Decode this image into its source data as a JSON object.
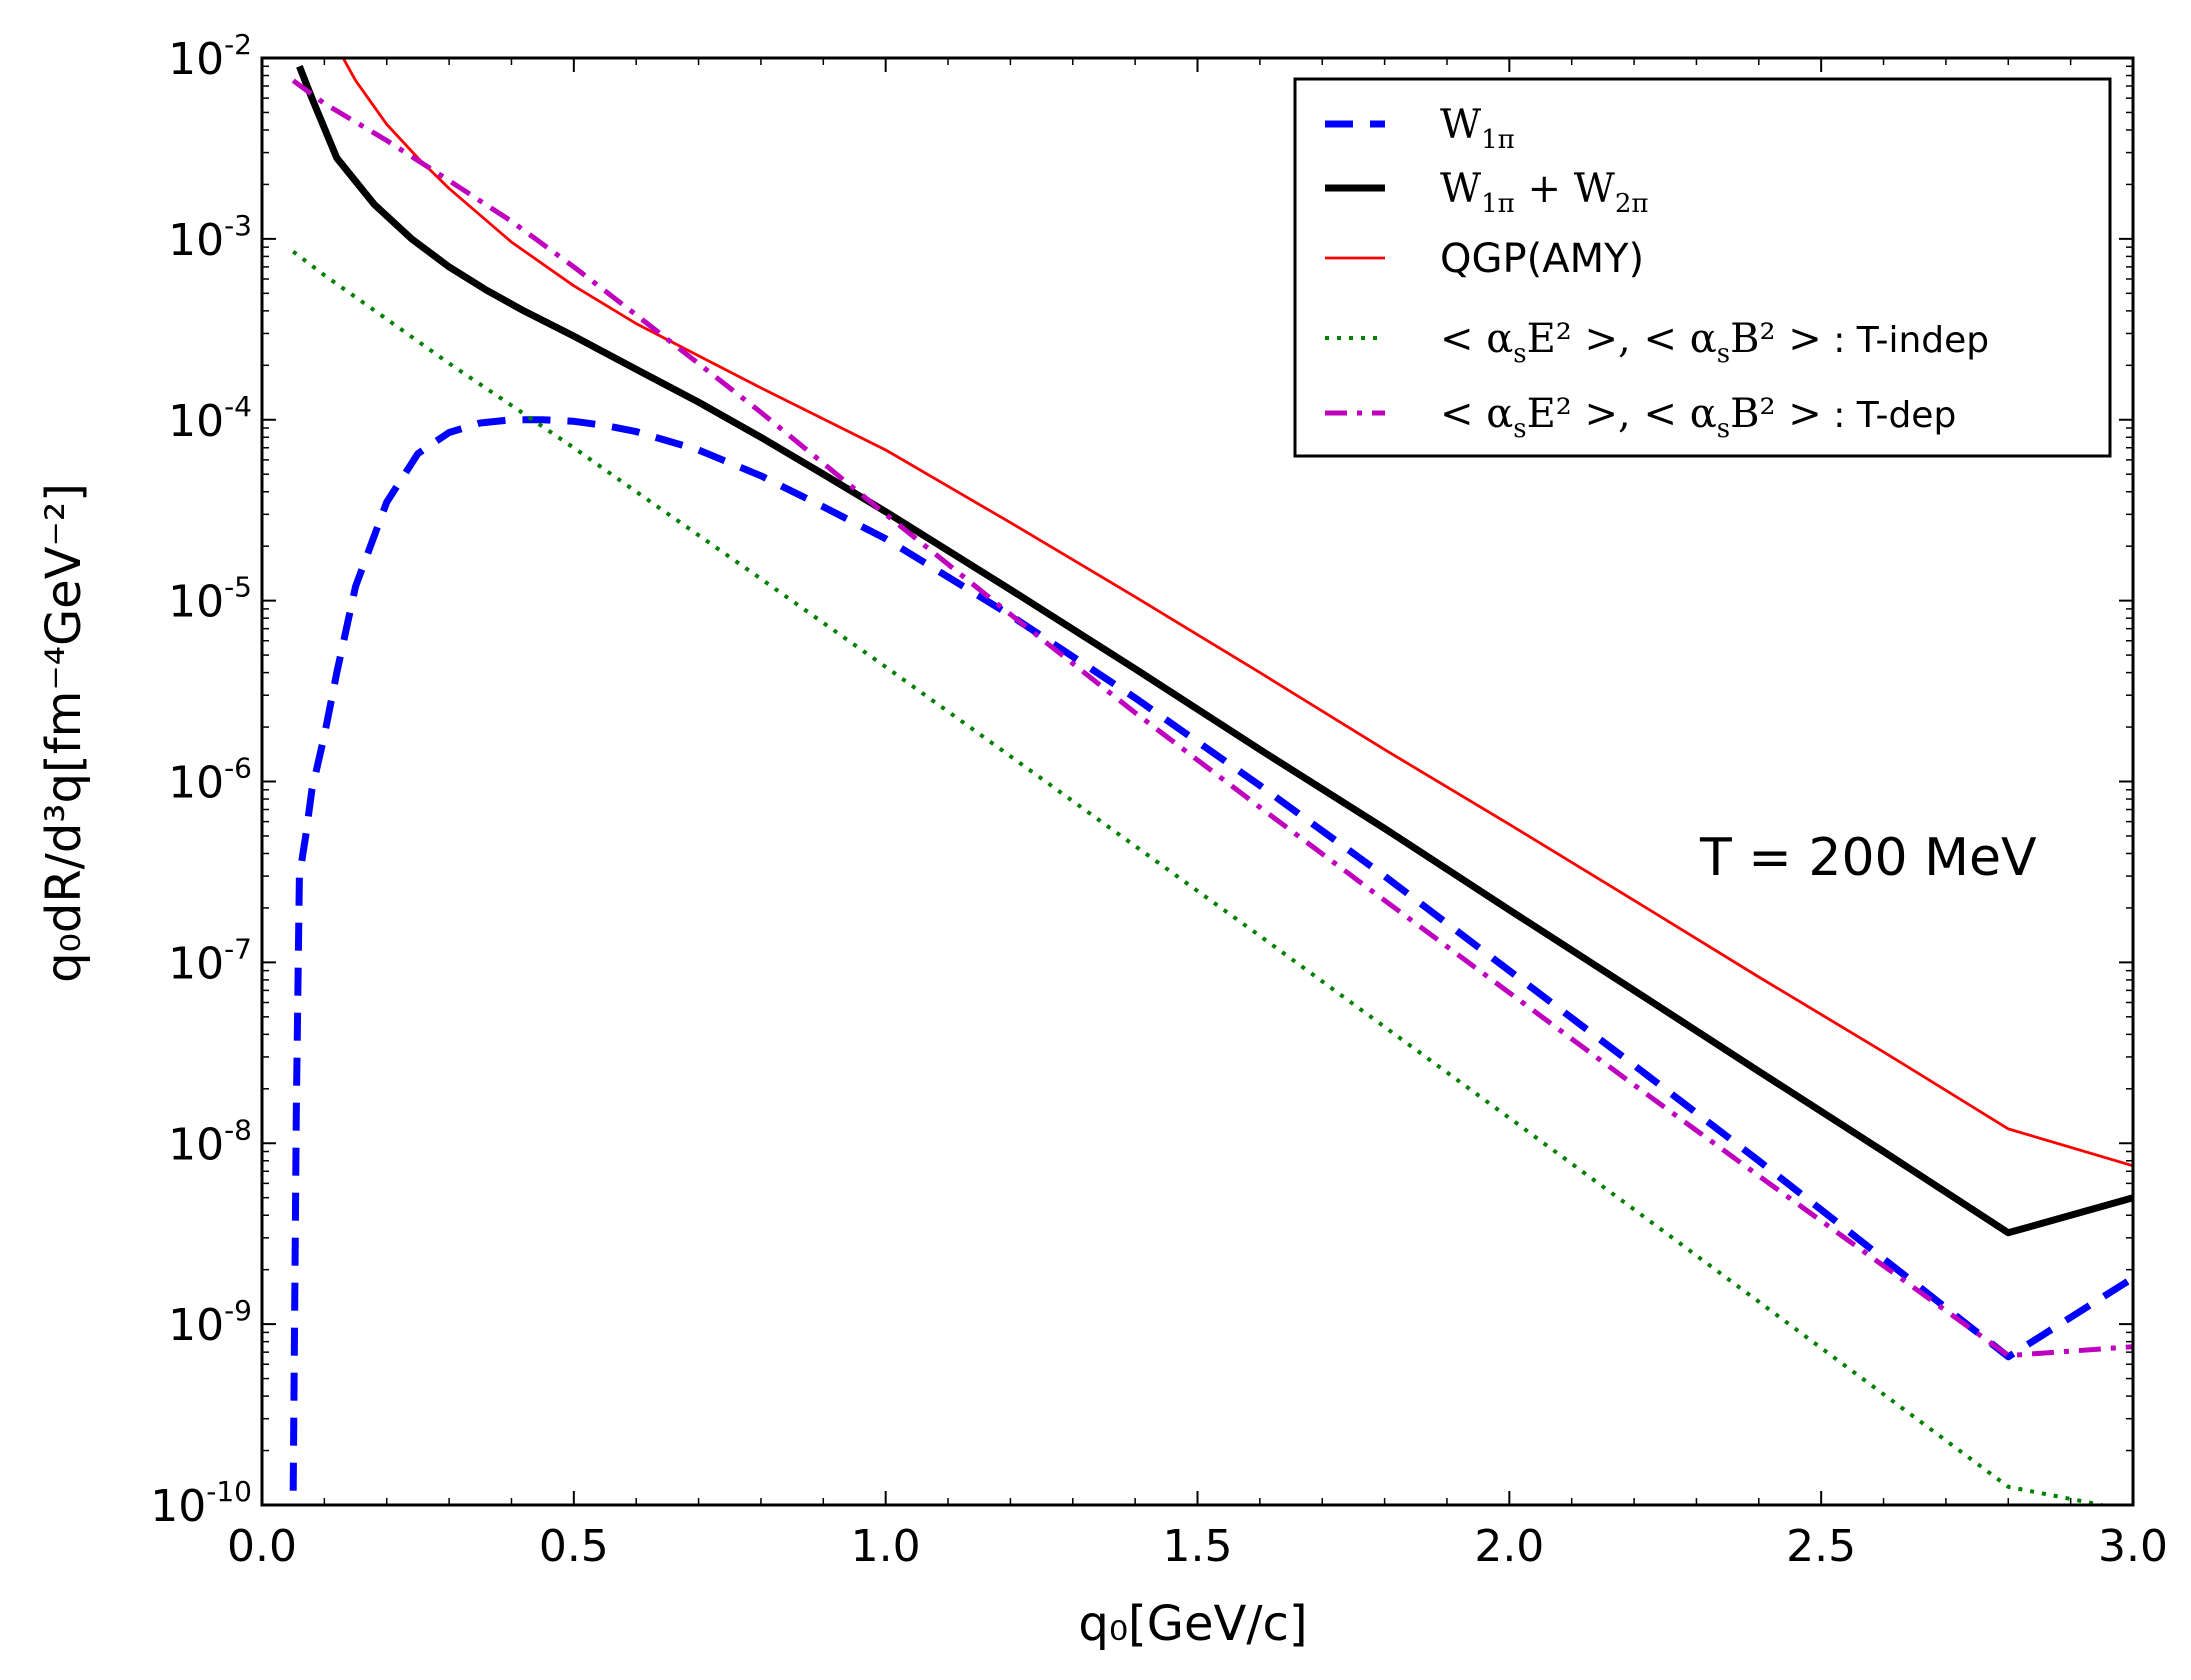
{
  "chart_data": {
    "type": "line",
    "title": "",
    "xlabel": "q₀[GeV/c]",
    "ylabel": "q₀dR/d³q[fm⁻⁴GeV⁻²]",
    "xlim": [
      0.0,
      3.0
    ],
    "ylim": [
      1e-10,
      0.01
    ],
    "yscale": "log",
    "grid": false,
    "legend_position": "top-right",
    "x_ticks": [
      "0.0",
      "0.5",
      "1.0",
      "1.5",
      "2.0",
      "2.5",
      "3.0"
    ],
    "y_ticks": [
      {
        "base": "10",
        "exp": "-10"
      },
      {
        "base": "10",
        "exp": "-9"
      },
      {
        "base": "10",
        "exp": "-8"
      },
      {
        "base": "10",
        "exp": "-7"
      },
      {
        "base": "10",
        "exp": "-6"
      },
      {
        "base": "10",
        "exp": "-5"
      },
      {
        "base": "10",
        "exp": "-4"
      },
      {
        "base": "10",
        "exp": "-3"
      },
      {
        "base": "10",
        "exp": "-2"
      }
    ],
    "annotation": "T = 200 MeV",
    "series": [
      {
        "name": "W₁π",
        "label_main": "W",
        "label_sub": "1π",
        "color": "#0000ff",
        "style": "dashed",
        "x": [
          0.05,
          0.055,
          0.06,
          0.07,
          0.08,
          0.1,
          0.12,
          0.15,
          0.2,
          0.25,
          0.3,
          0.35,
          0.4,
          0.45,
          0.5,
          0.55,
          0.6,
          0.7,
          0.8,
          0.9,
          1.0,
          1.2,
          1.4,
          1.6,
          1.8,
          2.0,
          2.2,
          2.4,
          2.6,
          2.8,
          3.0
        ],
        "y": [
          1.2e-10,
          1.5e-08,
          3e-07,
          5e-07,
          9e-07,
          1.8e-06,
          4e-06,
          1.2e-05,
          3.5e-05,
          6.5e-05,
          8.5e-05,
          9.6e-05,
          0.0001,
          0.0001,
          9.8e-05,
          9.3e-05,
          8.6e-05,
          6.8e-05,
          4.9e-05,
          3.3e-05,
          2.2e-05,
          8.3e-06,
          2.9e-06,
          9.5e-07,
          3e-07,
          9e-08,
          2.7e-08,
          8e-09,
          2.3e-09,
          6.6e-10,
          1.8e-09
        ]
      },
      {
        "name": "W₁π + W₂π",
        "label_main": "W",
        "label_sub": "1π",
        "label_mid": " + W",
        "label_sub2": "2π",
        "color": "#000000",
        "style": "solid-thick",
        "x": [
          0.06,
          0.08,
          0.12,
          0.18,
          0.24,
          0.3,
          0.36,
          0.42,
          0.5,
          0.6,
          0.7,
          0.8,
          0.9,
          1.0,
          1.2,
          1.4,
          1.6,
          1.8,
          2.0,
          2.2,
          2.4,
          2.6,
          2.8,
          3.0
        ],
        "y": [
          0.009,
          0.006,
          0.0028,
          0.00155,
          0.001,
          0.0007,
          0.00052,
          0.0004,
          0.00029,
          0.00019,
          0.000125,
          8e-05,
          5e-05,
          3.1e-05,
          1.15e-05,
          4.2e-06,
          1.5e-06,
          5.5e-07,
          1.95e-07,
          7e-08,
          2.5e-08,
          9e-09,
          3.2e-09,
          5e-09
        ]
      },
      {
        "name": "QGP(AMY)",
        "color": "#ff0000",
        "style": "solid",
        "x": [
          0.13,
          0.15,
          0.2,
          0.25,
          0.3,
          0.4,
          0.5,
          0.6,
          0.8,
          1.0,
          1.2,
          1.4,
          1.6,
          1.8,
          2.0,
          2.2,
          2.4,
          2.6,
          2.8,
          3.0
        ],
        "y": [
          0.01,
          0.0075,
          0.0043,
          0.0028,
          0.0019,
          0.00096,
          0.00055,
          0.00034,
          0.00015,
          6.8e-05,
          2.7e-05,
          1.05e-05,
          4e-06,
          1.5e-06,
          5.8e-07,
          2.2e-07,
          8.3e-08,
          3.2e-08,
          1.2e-08,
          7.5e-09
        ]
      },
      {
        "name": "<αₛE²>, <αₛB²> : T-indep",
        "color": "#008000",
        "style": "dotted",
        "x": [
          0.05,
          0.1,
          0.2,
          0.3,
          0.4,
          0.5,
          0.6,
          0.8,
          1.0,
          1.2,
          1.4,
          1.6,
          1.8,
          2.0,
          2.2,
          2.4,
          2.6,
          2.8,
          2.95
        ],
        "y": [
          0.00085,
          0.00063,
          0.00036,
          0.000205,
          0.00012,
          7e-05,
          4e-05,
          1.32e-05,
          4.3e-06,
          1.38e-06,
          4.4e-07,
          1.4e-07,
          4.4e-08,
          1.38e-08,
          4.3e-09,
          1.33e-09,
          4.1e-10,
          1.26e-10,
          1e-10
        ]
      },
      {
        "name": "<αₛE²>, <αₛB²> : T-dep",
        "color": "#bf00bf",
        "style": "dashdot",
        "x": [
          0.05,
          0.1,
          0.2,
          0.3,
          0.4,
          0.5,
          0.6,
          0.8,
          1.0,
          1.2,
          1.4,
          1.6,
          1.8,
          2.0,
          2.2,
          2.4,
          2.6,
          2.8,
          3.0
        ],
        "y": [
          0.0075,
          0.0056,
          0.0035,
          0.0021,
          0.00125,
          0.0007,
          0.00038,
          0.00011,
          3e-05,
          8.4e-06,
          2.4e-06,
          7.2e-07,
          2.2e-07,
          6.8e-08,
          2.1e-08,
          6.6e-09,
          2.1e-09,
          6.7e-10,
          7.5e-10
        ]
      }
    ],
    "legend": [
      {
        "key": "s0",
        "text_main": "W",
        "text_sub": "1π"
      },
      {
        "key": "s1",
        "text_main": "W",
        "text_sub": "1π",
        "text_mid": " + W",
        "text_sub2": "2π"
      },
      {
        "key": "s2",
        "text_main": "QGP(AMY)"
      },
      {
        "key": "s3",
        "text_main": "< α",
        "text_sub": "s",
        "text_tail": "E² >, < α",
        "text_sub2": "s",
        "text_tail2": "B² >",
        "text_label": " :  T-indep"
      },
      {
        "key": "s4",
        "text_main": "< α",
        "text_sub": "s",
        "text_tail": "E² >, < α",
        "text_sub2": "s",
        "text_tail2": "B² >",
        "text_label": " :  T-dep"
      }
    ]
  }
}
